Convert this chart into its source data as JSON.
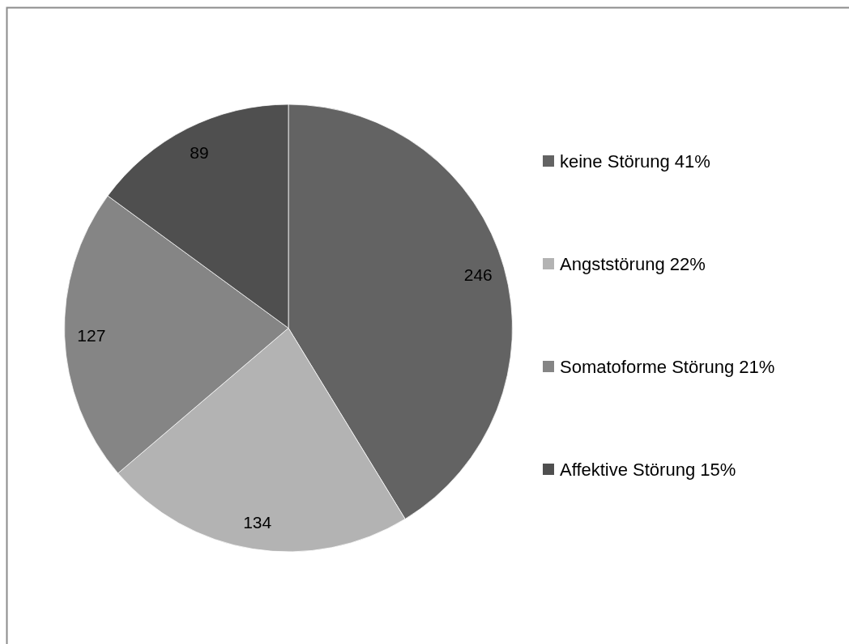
{
  "chart_data": {
    "type": "pie",
    "categories": [
      "keine Störung 41%",
      "Angststörung 22%",
      "Somatoforme Störung 21%",
      "Affektive Störung 15%"
    ],
    "values": [
      246,
      134,
      127,
      89
    ],
    "colors": [
      "#636363",
      "#b3b3b3",
      "#858585",
      "#4f4f4f"
    ],
    "data_labels": true,
    "legend": "right"
  }
}
